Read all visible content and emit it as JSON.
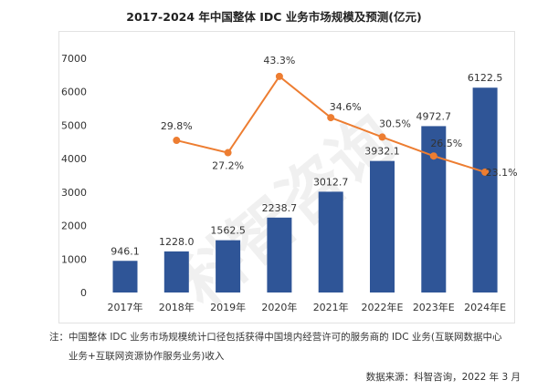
{
  "chart_data": {
    "type": "bar+line",
    "title": "2017-2024 年中国整体 IDC 业务市场规模及预测(亿元)",
    "categories": [
      "2017年",
      "2018年",
      "2019年",
      "2020年",
      "2021年",
      "2022年E",
      "2023年E",
      "2024年E"
    ],
    "series": [
      {
        "type": "bar",
        "values": [
          946.1,
          1228.0,
          1562.5,
          2238.7,
          3012.7,
          3932.1,
          4972.7,
          6122.5
        ],
        "labels": [
          "946.1",
          "1228.0",
          "1562.5",
          "2238.7",
          "3012.7",
          "3932.1",
          "4972.7",
          "6122.5"
        ],
        "color": "#2f5597"
      },
      {
        "type": "line",
        "axis": "secondary",
        "values": [
          null,
          29.8,
          27.2,
          43.3,
          34.6,
          30.5,
          26.5,
          23.1
        ],
        "labels": [
          "",
          "29.8%",
          "27.2%",
          "43.3%",
          "34.6%",
          "30.5%",
          "26.5%",
          "23.1%"
        ],
        "color": "#ed7d31"
      }
    ],
    "ylim": [
      0,
      7000
    ],
    "yticks": [
      "0",
      "1000",
      "2000",
      "3000",
      "4000",
      "5000",
      "6000",
      "7000"
    ],
    "grid": false
  },
  "note": {
    "line1": "注：中国整体 IDC 业务市场规模统计口径包括获得中国境内经营许可的服务商的 IDC 业务(互联网数据中心",
    "line2": "业务+互联网资源协作服务业务)收入"
  },
  "source": "数据来源：科智咨询，2022 年 3 月",
  "watermark": "科智咨询"
}
